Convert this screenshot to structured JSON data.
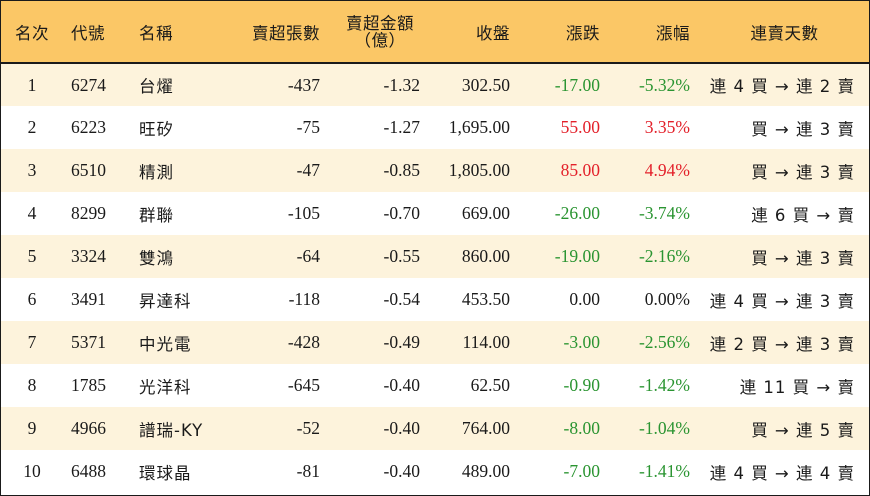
{
  "headers": {
    "rank": "名次",
    "code": "代號",
    "name": "名稱",
    "net_sell_lots": "賣超張數",
    "net_sell_amount_line1": "賣超金額",
    "net_sell_amount_line2": "（億）",
    "close": "收盤",
    "change": "漲跌",
    "change_pct": "漲幅",
    "streak": "連賣天數"
  },
  "colors": {
    "header_bg": "#fbc766",
    "odd_row_bg": "#fdf3dc",
    "up": "#e3202a",
    "down": "#2a9431"
  },
  "rows": [
    {
      "rank": "1",
      "code": "6274",
      "name": "台燿",
      "lots": "-437",
      "amount": "-1.32",
      "close": "302.50",
      "change": "-17.00",
      "pct": "-5.32%",
      "dir": "down",
      "streak": "連 4 買 → 連 2 賣"
    },
    {
      "rank": "2",
      "code": "6223",
      "name": "旺矽",
      "lots": "-75",
      "amount": "-1.27",
      "close": "1,695.00",
      "change": "55.00",
      "pct": "3.35%",
      "dir": "up",
      "streak": "買 → 連 3 賣"
    },
    {
      "rank": "3",
      "code": "6510",
      "name": "精測",
      "lots": "-47",
      "amount": "-0.85",
      "close": "1,805.00",
      "change": "85.00",
      "pct": "4.94%",
      "dir": "up",
      "streak": "買 → 連 3 賣"
    },
    {
      "rank": "4",
      "code": "8299",
      "name": "群聯",
      "lots": "-105",
      "amount": "-0.70",
      "close": "669.00",
      "change": "-26.00",
      "pct": "-3.74%",
      "dir": "down",
      "streak": "連 6 買 → 賣"
    },
    {
      "rank": "5",
      "code": "3324",
      "name": "雙鴻",
      "lots": "-64",
      "amount": "-0.55",
      "close": "860.00",
      "change": "-19.00",
      "pct": "-2.16%",
      "dir": "down",
      "streak": "買 → 連 3 賣"
    },
    {
      "rank": "6",
      "code": "3491",
      "name": "昇達科",
      "lots": "-118",
      "amount": "-0.54",
      "close": "453.50",
      "change": "0.00",
      "pct": "0.00%",
      "dir": "flat",
      "streak": "連 4 買 → 連 3 賣"
    },
    {
      "rank": "7",
      "code": "5371",
      "name": "中光電",
      "lots": "-428",
      "amount": "-0.49",
      "close": "114.00",
      "change": "-3.00",
      "pct": "-2.56%",
      "dir": "down",
      "streak": "連 2 買 → 連 3 賣"
    },
    {
      "rank": "8",
      "code": "1785",
      "name": "光洋科",
      "lots": "-645",
      "amount": "-0.40",
      "close": "62.50",
      "change": "-0.90",
      "pct": "-1.42%",
      "dir": "down",
      "streak": "連 11 買 → 賣"
    },
    {
      "rank": "9",
      "code": "4966",
      "name": "譜瑞-KY",
      "lots": "-52",
      "amount": "-0.40",
      "close": "764.00",
      "change": "-8.00",
      "pct": "-1.04%",
      "dir": "down",
      "streak": "買 → 連 5 賣"
    },
    {
      "rank": "10",
      "code": "6488",
      "name": "環球晶",
      "lots": "-81",
      "amount": "-0.40",
      "close": "489.00",
      "change": "-7.00",
      "pct": "-1.41%",
      "dir": "down",
      "streak": "連 4 買 → 連 4 賣"
    }
  ]
}
